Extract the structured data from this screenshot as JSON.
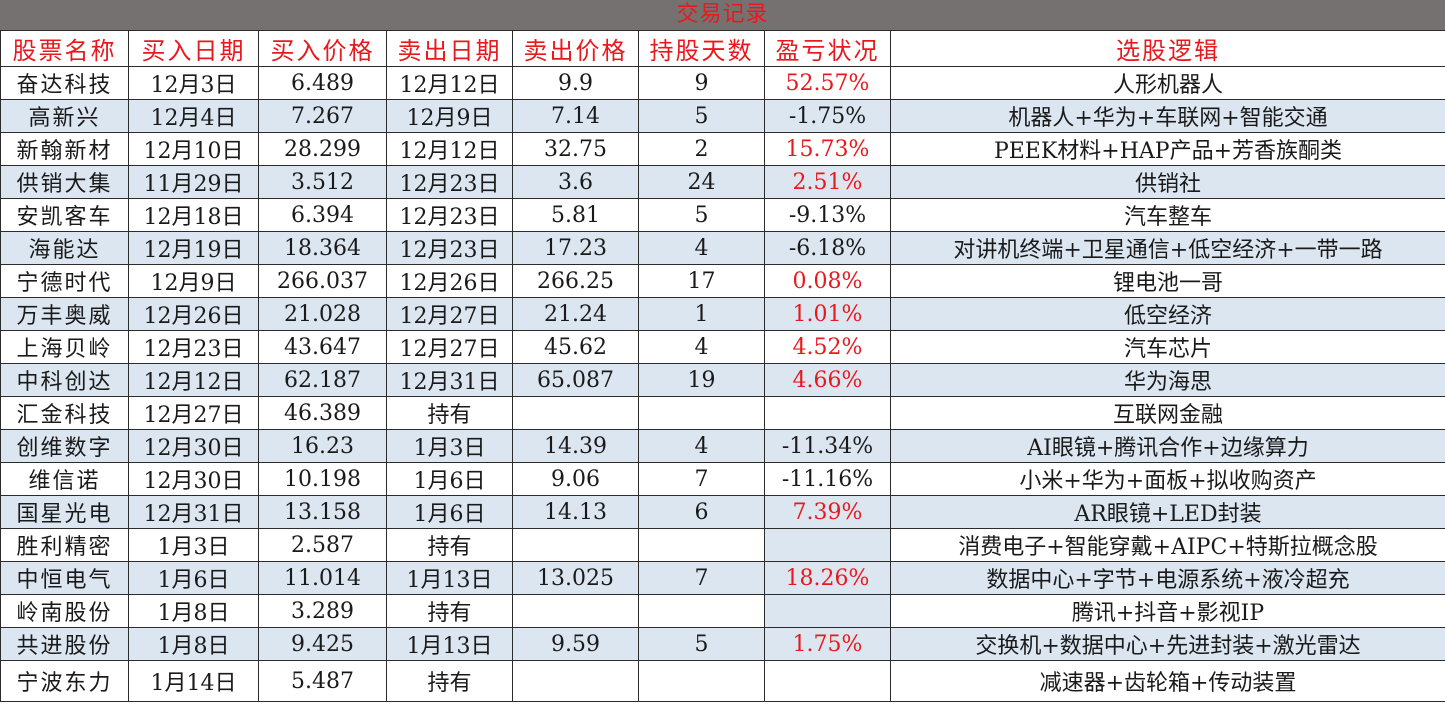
{
  "title": "交易记录",
  "headers": [
    "股票名称",
    "买入日期",
    "买入价格",
    "卖出日期",
    "卖出价格",
    "持股天数",
    "盈亏状况",
    "选股逻辑"
  ],
  "colors": {
    "title_bg": "#767171",
    "accent_red": "#e8191d",
    "row_shade": "#dce6f1"
  },
  "rows": [
    {
      "name": "奋达科技",
      "buy_date": "12月3日",
      "buy_price": "6.489",
      "sell_date": "12月12日",
      "sell_price": "9.9",
      "days": "9",
      "pnl": "52.57%",
      "pnl_type": "profit",
      "logic": "人形机器人",
      "shade": false
    },
    {
      "name": "高新兴",
      "buy_date": "12月4日",
      "buy_price": "7.267",
      "sell_date": "12月9日",
      "sell_price": "7.14",
      "days": "5",
      "pnl": "-1.75%",
      "pnl_type": "loss",
      "logic": "机器人+华为+车联网+智能交通",
      "shade": true
    },
    {
      "name": "新翰新材",
      "buy_date": "12月10日",
      "buy_price": "28.299",
      "sell_date": "12月12日",
      "sell_price": "32.75",
      "days": "2",
      "pnl": "15.73%",
      "pnl_type": "profit",
      "logic": "PEEK材料+HAP产品+芳香族酮类",
      "shade": false
    },
    {
      "name": "供销大集",
      "buy_date": "11月29日",
      "buy_price": "3.512",
      "sell_date": "12月23日",
      "sell_price": "3.6",
      "days": "24",
      "pnl": "2.51%",
      "pnl_type": "profit",
      "logic": "供销社",
      "shade": true
    },
    {
      "name": "安凯客车",
      "buy_date": "12月18日",
      "buy_price": "6.394",
      "sell_date": "12月23日",
      "sell_price": "5.81",
      "days": "5",
      "pnl": "-9.13%",
      "pnl_type": "loss",
      "logic": "汽车整车",
      "shade": false
    },
    {
      "name": "海能达",
      "buy_date": "12月19日",
      "buy_price": "18.364",
      "sell_date": "12月23日",
      "sell_price": "17.23",
      "days": "4",
      "pnl": "-6.18%",
      "pnl_type": "loss",
      "logic": "对讲机终端+卫星通信+低空经济+一带一路",
      "shade": true
    },
    {
      "name": "宁德时代",
      "buy_date": "12月9日",
      "buy_price": "266.037",
      "sell_date": "12月26日",
      "sell_price": "266.25",
      "days": "17",
      "pnl": "0.08%",
      "pnl_type": "profit",
      "logic": "锂电池一哥",
      "shade": false
    },
    {
      "name": "万丰奥威",
      "buy_date": "12月26日",
      "buy_price": "21.028",
      "sell_date": "12月27日",
      "sell_price": "21.24",
      "days": "1",
      "pnl": "1.01%",
      "pnl_type": "profit",
      "logic": "低空经济",
      "shade": true
    },
    {
      "name": "上海贝岭",
      "buy_date": "12月23日",
      "buy_price": "43.647",
      "sell_date": "12月27日",
      "sell_price": "45.62",
      "days": "4",
      "pnl": "4.52%",
      "pnl_type": "profit",
      "logic": "汽车芯片",
      "shade": false
    },
    {
      "name": "中科创达",
      "buy_date": "12月12日",
      "buy_price": "62.187",
      "sell_date": "12月31日",
      "sell_price": "65.087",
      "days": "19",
      "pnl": "4.66%",
      "pnl_type": "profit",
      "logic": "华为海思",
      "shade": true
    },
    {
      "name": "汇金科技",
      "buy_date": "12月27日",
      "buy_price": "46.389",
      "sell_date": "持有",
      "sell_price": "",
      "days": "",
      "pnl": "",
      "pnl_type": "none",
      "logic": "互联网金融",
      "shade": false
    },
    {
      "name": "创维数字",
      "buy_date": "12月30日",
      "buy_price": "16.23",
      "sell_date": "1月3日",
      "sell_price": "14.39",
      "days": "4",
      "pnl": "-11.34%",
      "pnl_type": "loss",
      "logic": "AI眼镜+腾讯合作+边缘算力",
      "shade": true
    },
    {
      "name": "维信诺",
      "buy_date": "12月30日",
      "buy_price": "10.198",
      "sell_date": "1月6日",
      "sell_price": "9.06",
      "days": "7",
      "pnl": "-11.16%",
      "pnl_type": "loss",
      "logic": "小米+华为+面板+拟收购资产",
      "shade": false
    },
    {
      "name": "国星光电",
      "buy_date": "12月31日",
      "buy_price": "13.158",
      "sell_date": "1月6日",
      "sell_price": "14.13",
      "days": "6",
      "pnl": "7.39%",
      "pnl_type": "profit",
      "logic": "AR眼镜+LED封装",
      "shade": true
    },
    {
      "name": "胜利精密",
      "buy_date": "1月3日",
      "buy_price": "2.587",
      "sell_date": "持有",
      "sell_price": "",
      "days": "",
      "pnl": "",
      "pnl_type": "blank-blue",
      "logic": "消费电子+智能穿戴+AIPC+特斯拉概念股",
      "shade": false
    },
    {
      "name": "中恒电气",
      "buy_date": "1月6日",
      "buy_price": "11.014",
      "sell_date": "1月13日",
      "sell_price": "13.025",
      "days": "7",
      "pnl": "18.26%",
      "pnl_type": "profit",
      "logic": "数据中心+字节+电源系统+液冷超充",
      "shade": true
    },
    {
      "name": "岭南股份",
      "buy_date": "1月8日",
      "buy_price": "3.289",
      "sell_date": "持有",
      "sell_price": "",
      "days": "",
      "pnl": "",
      "pnl_type": "blank-blue",
      "logic": "腾讯+抖音+影视IP",
      "shade": false
    },
    {
      "name": "共进股份",
      "buy_date": "1月8日",
      "buy_price": "9.425",
      "sell_date": "1月13日",
      "sell_price": "9.59",
      "days": "5",
      "pnl": "1.75%",
      "pnl_type": "profit",
      "logic": "交换机+数据中心+先进封装+激光雷达",
      "shade": true
    },
    {
      "name": "宁波东力",
      "buy_date": "1月14日",
      "buy_price": "5.487",
      "sell_date": "持有",
      "sell_price": "",
      "days": "",
      "pnl": "",
      "pnl_type": "none",
      "logic": "减速器+齿轮箱+传动装置",
      "shade": false
    }
  ]
}
